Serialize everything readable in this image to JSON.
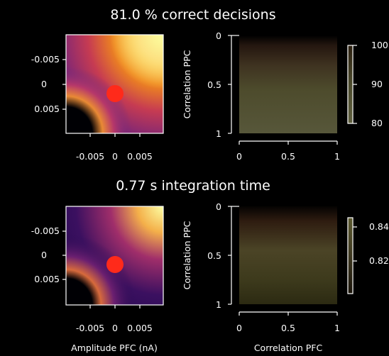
{
  "chart_data": [
    {
      "type": "heatmap",
      "title": "81.0 % correct decisions",
      "panels": [
        {
          "name": "amplitude-map",
          "xlabel": "",
          "ylabel": "",
          "x_ticks": [
            "-0.005",
            "0",
            "0.005"
          ],
          "y_ticks": [
            "-0.005",
            "0",
            "0.005"
          ],
          "marker": {
            "x": 0,
            "y": 0,
            "color": "#ff2a1a"
          },
          "colormap": "inferno"
        },
        {
          "name": "correlation-map",
          "xlabel": "",
          "ylabel": "Correlation PPC",
          "x_ticks": [
            "0",
            "0.5",
            "1"
          ],
          "y_ticks": [
            "0",
            "0.5",
            "1"
          ],
          "colormap": "olive-brown"
        }
      ],
      "colorbar": {
        "ticks": [
          "100",
          "90",
          "80"
        ],
        "range": [
          80,
          100
        ]
      }
    },
    {
      "type": "heatmap",
      "title": "0.77 s integration time",
      "panels": [
        {
          "name": "amplitude-map",
          "xlabel": "Amplitude PFC (nA)",
          "ylabel": "",
          "x_ticks": [
            "-0.005",
            "0",
            "0.005"
          ],
          "y_ticks": [
            "-0.005",
            "0",
            "0.005"
          ],
          "marker": {
            "x": 0,
            "y": 0,
            "color": "#ff2a1a"
          },
          "colormap": "inferno"
        },
        {
          "name": "correlation-map",
          "xlabel": "Correlation PFC",
          "ylabel": "Correlation PPC",
          "x_ticks": [
            "0",
            "0.5",
            "1"
          ],
          "y_ticks": [
            "0",
            "0.5",
            "1"
          ],
          "colormap": "olive-brown"
        }
      ],
      "colorbar": {
        "ticks": [
          "0.84",
          "0.82"
        ],
        "range": [
          0.81,
          0.845
        ]
      }
    }
  ]
}
